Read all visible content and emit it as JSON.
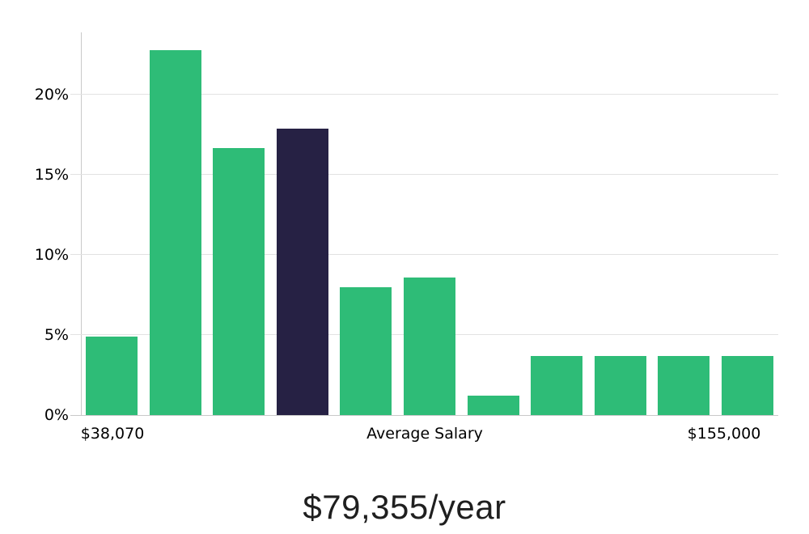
{
  "chart_data": {
    "type": "bar",
    "values": [
      4.9,
      22.8,
      16.7,
      17.9,
      8.0,
      8.6,
      1.2,
      3.7,
      3.7,
      3.7,
      3.7
    ],
    "unit": "%",
    "highlight_index": 3,
    "y_ticks": [
      "0%",
      "5%",
      "10%",
      "15%",
      "20%"
    ],
    "y_tick_values": [
      0,
      5,
      10,
      15,
      20
    ],
    "ylim": [
      0,
      23.9
    ],
    "grid": true,
    "legend": false,
    "x_axis_labels": [
      "$38,070",
      "Average Salary",
      "$155,000"
    ],
    "caption": "$79,355/year",
    "colors": {
      "bar": "#2ebc77",
      "highlight_bar": "#262144",
      "gridline": "#e2e2e2",
      "axis": "#c9c9c9",
      "text": "#000000"
    }
  }
}
